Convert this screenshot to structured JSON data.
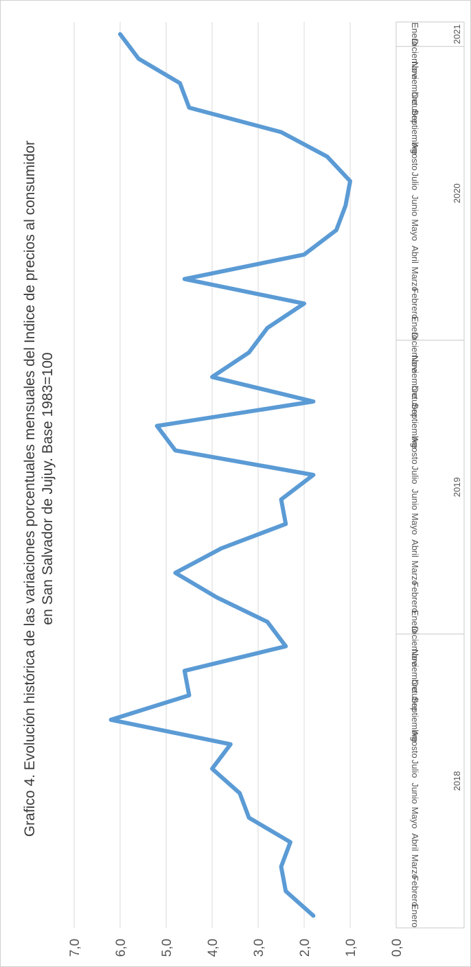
{
  "chart_data": {
    "type": "line",
    "title": "Grafico 4. Evolución histórica de las variaciones porcentuales mensuales del Indice de precios al consumidor",
    "subtitle": "en San Salvador de Jujuy. Base 1983=100",
    "ylim": [
      0,
      7
    ],
    "y_ticks": [
      "0,0",
      "1,0",
      "2,0",
      "3,0",
      "4,0",
      "5,0",
      "6,0",
      "7,0"
    ],
    "categories": [
      "Enero",
      "Febrero",
      "Marzo",
      "Abril",
      "Mayo",
      "Junio",
      "Julio",
      "Agosto",
      "Septiembre",
      "Octubre",
      "Noviembre",
      "Diciembre",
      "Enero",
      "Febrero",
      "Marzo",
      "Abril",
      "Mayo",
      "Junio",
      "Julio",
      "Agosto",
      "Septiembre",
      "Octubre",
      "Noviembre",
      "Diciembre",
      "Enero",
      "Febrero",
      "Marzo",
      "Abril",
      "Mayo",
      "Junio",
      "Julio",
      "Agosto",
      "Septiembre",
      "Octubre",
      "Noviembre",
      "Diciembre",
      "Enero"
    ],
    "year_groups": [
      {
        "label": "2018",
        "count": 12
      },
      {
        "label": "2019",
        "count": 12
      },
      {
        "label": "2020",
        "count": 12
      },
      {
        "label": "2021",
        "count": 1
      }
    ],
    "series": [
      {
        "values": [
          1.8,
          2.4,
          2.5,
          2.3,
          3.2,
          3.4,
          4.0,
          3.6,
          6.2,
          4.5,
          4.6,
          2.4,
          2.8,
          3.9,
          4.8,
          3.8,
          2.4,
          2.5,
          1.8,
          4.8,
          5.2,
          1.8,
          4.0,
          3.2,
          2.8,
          2.0,
          4.6,
          2.0,
          1.3,
          1.1,
          1.0,
          1.5,
          2.5,
          4.5,
          4.7,
          5.6,
          6.0
        ],
        "color": "#5b9bd5"
      }
    ],
    "grid": true,
    "orientation": "rotated-90-clockwise"
  }
}
